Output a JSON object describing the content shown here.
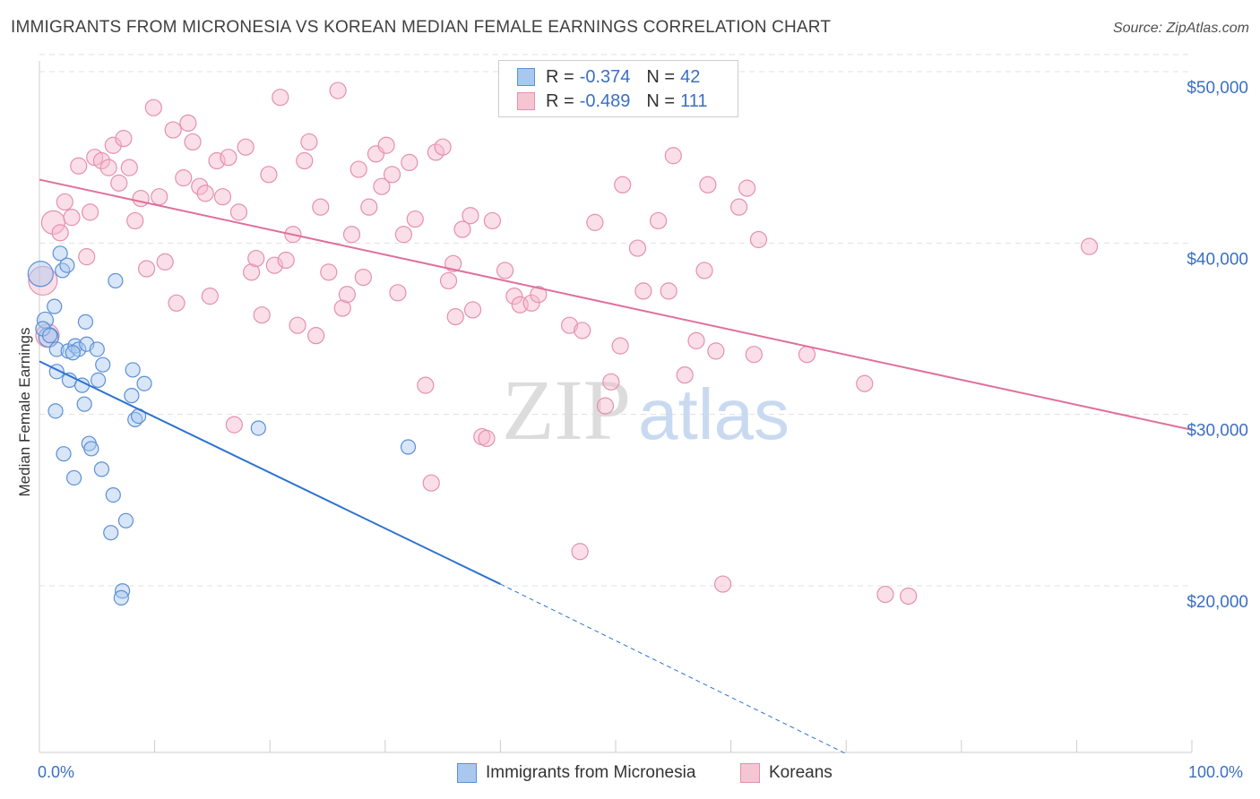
{
  "title": "IMMIGRANTS FROM MICRONESIA VS KOREAN MEDIAN FEMALE EARNINGS CORRELATION CHART",
  "source": "Source: ZipAtlas.com",
  "watermark": {
    "zip": "ZIP",
    "atlas": "atlas"
  },
  "legend": {
    "rows": [
      {
        "r_label": "R =",
        "r_value": "-0.374",
        "n_label": "N =",
        "n_value": "42"
      },
      {
        "r_label": "R =",
        "r_value": "-0.489",
        "n_label": "N =",
        "n_value": "111"
      }
    ]
  },
  "colors": {
    "blue_fill": "#a9c8f0",
    "blue_stroke": "#5b8fd6",
    "blue_line": "#2d72d2",
    "pink_fill": "#f6b8cb",
    "pink_stroke": "#e490ad",
    "pink_line": "#e0709a",
    "tick_text": "#3a6fc4",
    "grid": "#e0e0e0"
  },
  "chart_data": {
    "type": "scatter",
    "title": "IMMIGRANTS FROM MICRONESIA VS KOREAN MEDIAN FEMALE EARNINGS CORRELATION CHART",
    "xlabel": "",
    "ylabel": "Median Female Earnings",
    "xlim": [
      0,
      100
    ],
    "ylim": [
      10000,
      52000
    ],
    "x_tick_labels": [
      "0.0%",
      "100.0%"
    ],
    "y_ticks": [
      20000,
      30000,
      40000,
      50000
    ],
    "y_tick_labels": [
      "$20,000",
      "$30,000",
      "$40,000",
      "$50,000"
    ],
    "grid": true,
    "legend_position": "top-center",
    "series": [
      {
        "name": "Immigrants from Micronesia",
        "r": -0.374,
        "n": 42,
        "trend": {
          "x_solid": [
            0,
            40
          ],
          "y_solid": [
            33100,
            20100
          ],
          "x_dashed": [
            40,
            70
          ],
          "y_dashed": [
            20100,
            10200
          ]
        },
        "points": [
          [
            0.1,
            38200,
            14
          ],
          [
            0.5,
            35500,
            9
          ],
          [
            0.8,
            34500,
            11
          ],
          [
            1.3,
            36300,
            8
          ],
          [
            1.8,
            39400,
            8
          ],
          [
            2.0,
            38400,
            8
          ],
          [
            2.4,
            38700,
            8
          ],
          [
            1.5,
            33800,
            8
          ],
          [
            2.5,
            33700,
            8
          ],
          [
            3.1,
            34000,
            8
          ],
          [
            3.4,
            33800,
            8
          ],
          [
            4.0,
            35400,
            8
          ],
          [
            4.1,
            34100,
            8
          ],
          [
            5.0,
            33800,
            8
          ],
          [
            5.5,
            32900,
            8
          ],
          [
            1.5,
            32500,
            8
          ],
          [
            2.6,
            32000,
            8
          ],
          [
            3.7,
            31700,
            8
          ],
          [
            1.4,
            30200,
            8
          ],
          [
            3.9,
            30600,
            8
          ],
          [
            2.1,
            27700,
            8
          ],
          [
            4.3,
            28300,
            8
          ],
          [
            4.5,
            28000,
            8
          ],
          [
            3.0,
            26300,
            8
          ],
          [
            5.4,
            26800,
            8
          ],
          [
            6.4,
            25300,
            8
          ],
          [
            6.2,
            23100,
            8
          ],
          [
            7.5,
            23800,
            8
          ],
          [
            7.2,
            19700,
            8
          ],
          [
            7.1,
            19300,
            8
          ],
          [
            6.6,
            37800,
            8
          ],
          [
            8.1,
            32600,
            8
          ],
          [
            8.0,
            31100,
            8
          ],
          [
            9.1,
            31800,
            8
          ],
          [
            8.3,
            29700,
            8
          ],
          [
            8.6,
            29900,
            8
          ],
          [
            19.0,
            29200,
            8
          ],
          [
            32.0,
            28100,
            8
          ],
          [
            0.3,
            35000,
            8
          ],
          [
            0.9,
            34600,
            8
          ],
          [
            2.9,
            33600,
            8
          ],
          [
            5.1,
            32000,
            8
          ]
        ]
      },
      {
        "name": "Koreans",
        "r": -0.489,
        "n": 111,
        "trend": {
          "x": [
            0,
            100
          ],
          "y": [
            43700,
            29100
          ]
        },
        "points": [
          [
            0.3,
            37800,
            16
          ],
          [
            0.7,
            34600,
            13
          ],
          [
            1.2,
            41200,
            13
          ],
          [
            1.8,
            40600,
            9
          ],
          [
            2.2,
            42400,
            9
          ],
          [
            2.8,
            41500,
            9
          ],
          [
            3.4,
            44500,
            9
          ],
          [
            4.4,
            41800,
            9
          ],
          [
            4.1,
            39200,
            9
          ],
          [
            4.8,
            45000,
            9
          ],
          [
            5.4,
            44800,
            9
          ],
          [
            6.0,
            44400,
            9
          ],
          [
            6.4,
            45700,
            9
          ],
          [
            6.9,
            43500,
            9
          ],
          [
            7.3,
            46100,
            9
          ],
          [
            7.8,
            44400,
            9
          ],
          [
            8.3,
            41300,
            9
          ],
          [
            8.8,
            42600,
            9
          ],
          [
            9.3,
            38500,
            9
          ],
          [
            9.9,
            47900,
            9
          ],
          [
            10.4,
            42700,
            9
          ],
          [
            10.9,
            38900,
            9
          ],
          [
            11.6,
            46600,
            9
          ],
          [
            11.9,
            36500,
            9
          ],
          [
            12.5,
            43800,
            9
          ],
          [
            12.9,
            47000,
            9
          ],
          [
            13.3,
            45900,
            9
          ],
          [
            13.9,
            43300,
            9
          ],
          [
            14.4,
            42900,
            9
          ],
          [
            14.8,
            36900,
            9
          ],
          [
            15.4,
            44800,
            9
          ],
          [
            15.9,
            42700,
            9
          ],
          [
            16.4,
            45000,
            9
          ],
          [
            16.9,
            29400,
            9
          ],
          [
            17.3,
            41800,
            9
          ],
          [
            17.9,
            45600,
            9
          ],
          [
            18.4,
            38300,
            9
          ],
          [
            18.8,
            39100,
            9
          ],
          [
            19.3,
            35800,
            9
          ],
          [
            19.9,
            44000,
            9
          ],
          [
            20.4,
            38700,
            9
          ],
          [
            21.4,
            39000,
            9
          ],
          [
            20.9,
            48500,
            9
          ],
          [
            22.0,
            40500,
            9
          ],
          [
            22.4,
            35200,
            9
          ],
          [
            23.0,
            44800,
            9
          ],
          [
            23.4,
            45900,
            9
          ],
          [
            24.0,
            34600,
            9
          ],
          [
            24.4,
            42100,
            9
          ],
          [
            25.1,
            38300,
            9
          ],
          [
            25.9,
            48900,
            9
          ],
          [
            26.3,
            36200,
            9
          ],
          [
            26.7,
            37000,
            9
          ],
          [
            27.1,
            40500,
            9
          ],
          [
            27.7,
            44300,
            9
          ],
          [
            28.1,
            38000,
            9
          ],
          [
            28.6,
            42100,
            9
          ],
          [
            29.2,
            45200,
            9
          ],
          [
            29.7,
            43300,
            9
          ],
          [
            30.1,
            45700,
            9
          ],
          [
            30.6,
            44000,
            9
          ],
          [
            31.1,
            37100,
            9
          ],
          [
            31.6,
            40500,
            9
          ],
          [
            32.1,
            44700,
            9
          ],
          [
            32.6,
            41400,
            9
          ],
          [
            33.5,
            31700,
            9
          ],
          [
            34.4,
            45300,
            9
          ],
          [
            35.0,
            45600,
            9
          ],
          [
            35.5,
            37800,
            9
          ],
          [
            35.9,
            38800,
            9
          ],
          [
            36.1,
            35700,
            9
          ],
          [
            36.7,
            40800,
            9
          ],
          [
            37.4,
            41600,
            9
          ],
          [
            37.6,
            36100,
            9
          ],
          [
            38.4,
            28700,
            9
          ],
          [
            38.8,
            28600,
            9
          ],
          [
            39.3,
            41300,
            9
          ],
          [
            40.4,
            38400,
            9
          ],
          [
            41.2,
            36900,
            9
          ],
          [
            41.7,
            36400,
            9
          ],
          [
            42.7,
            36500,
            9
          ],
          [
            43.3,
            37000,
            9
          ],
          [
            34.0,
            26000,
            9
          ],
          [
            46.0,
            35200,
            9
          ],
          [
            47.1,
            34900,
            9
          ],
          [
            46.9,
            22000,
            9
          ],
          [
            48.2,
            41200,
            9
          ],
          [
            49.1,
            30500,
            9
          ],
          [
            49.6,
            31900,
            9
          ],
          [
            50.4,
            34000,
            9
          ],
          [
            50.6,
            43400,
            9
          ],
          [
            51.9,
            39700,
            9
          ],
          [
            52.4,
            37200,
            9
          ],
          [
            53.7,
            41300,
            9
          ],
          [
            54.6,
            37200,
            9
          ],
          [
            55.0,
            45100,
            9
          ],
          [
            56.0,
            32300,
            9
          ],
          [
            57.0,
            34300,
            9
          ],
          [
            57.7,
            38400,
            9
          ],
          [
            58.0,
            43400,
            9
          ],
          [
            58.7,
            33700,
            9
          ],
          [
            59.3,
            20100,
            9
          ],
          [
            60.7,
            42100,
            9
          ],
          [
            62.0,
            33500,
            9
          ],
          [
            62.4,
            40200,
            9
          ],
          [
            61.4,
            43200,
            9
          ],
          [
            66.6,
            33500,
            9
          ],
          [
            71.6,
            31800,
            9
          ],
          [
            73.4,
            19500,
            9
          ],
          [
            75.4,
            19400,
            9
          ],
          [
            91.1,
            39800,
            9
          ]
        ]
      }
    ]
  },
  "bottom_legend": {
    "series1": "Immigrants from Micronesia",
    "series2": "Koreans"
  }
}
